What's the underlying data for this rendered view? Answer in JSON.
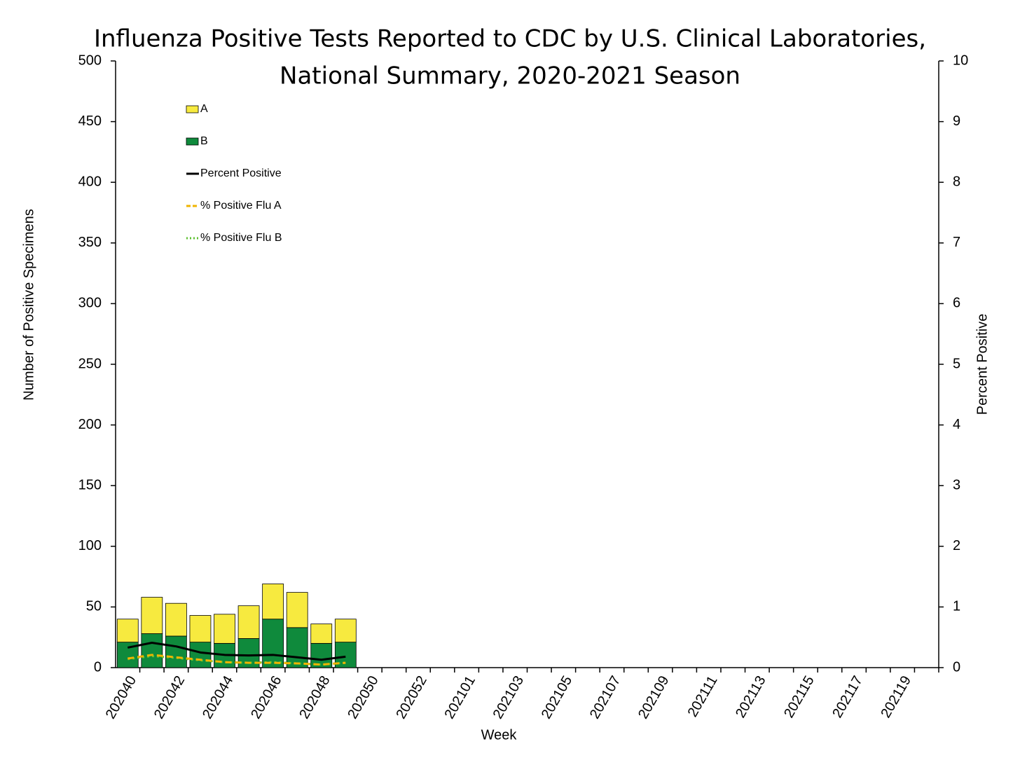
{
  "chart_data": {
    "type": "bar",
    "title": [
      "Influenza Positive Tests Reported to CDC by U.S. Clinical Laboratories,",
      "National Summary, 2020-2021 Season"
    ],
    "x_label": "Week",
    "y_label": "Number of Positive Specimens",
    "y2_label": "Percent Positive",
    "categories": [
      "202040",
      null,
      "202042",
      null,
      "202044",
      null,
      "202046",
      null,
      "202048",
      null,
      "202050",
      null,
      "202052",
      null,
      "202101",
      null,
      "202103",
      null,
      "202105",
      null,
      "202107",
      null,
      "202109",
      null,
      "202111",
      null,
      "202113",
      null,
      "202115",
      null,
      "202117",
      null,
      "202119",
      null
    ],
    "ylim": [
      0,
      500
    ],
    "yticks": [
      0,
      50,
      100,
      150,
      200,
      250,
      300,
      350,
      400,
      450,
      500
    ],
    "y2lim": [
      0,
      10
    ],
    "y2ticks": [
      0,
      1,
      2,
      3,
      4,
      5,
      6,
      7,
      8,
      9,
      10
    ],
    "stacked": true,
    "grid": false,
    "legend": "upper left",
    "series": [
      {
        "name": "A",
        "type": "bar",
        "color": "#f7ea3f",
        "values": [
          19,
          30,
          27,
          22,
          24,
          27,
          29,
          29,
          16,
          19,
          null,
          null,
          null,
          null,
          null,
          null,
          null,
          null,
          null,
          null,
          null,
          null,
          null,
          null,
          null,
          null,
          null,
          null,
          null,
          null,
          null,
          null,
          null,
          null
        ]
      },
      {
        "name": "B",
        "type": "bar",
        "color": "#0f8a3c",
        "values": [
          21,
          28,
          26,
          21,
          20,
          24,
          40,
          33,
          20,
          21,
          null,
          null,
          null,
          null,
          null,
          null,
          null,
          null,
          null,
          null,
          null,
          null,
          null,
          null,
          null,
          null,
          null,
          null,
          null,
          null,
          null,
          null,
          null,
          null
        ]
      },
      {
        "name": "Percent Positive",
        "type": "line",
        "axis": "y2",
        "color": "#000000",
        "style": "solid",
        "values": [
          0.33,
          0.41,
          0.35,
          0.25,
          0.21,
          0.2,
          0.21,
          0.17,
          0.13,
          0.18,
          null,
          null,
          null,
          null,
          null,
          null,
          null,
          null,
          null,
          null,
          null,
          null,
          null,
          null,
          null,
          null,
          null,
          null,
          null,
          null,
          null,
          null,
          null,
          null
        ]
      },
      {
        "name": "% Positive Flu A",
        "type": "line",
        "axis": "y2",
        "color": "#f0b400",
        "style": "dashed",
        "values": [
          0.15,
          0.21,
          0.17,
          0.13,
          0.09,
          0.08,
          0.08,
          0.07,
          0.05,
          0.08,
          null,
          null,
          null,
          null,
          null,
          null,
          null,
          null,
          null,
          null,
          null,
          null,
          null,
          null,
          null,
          null,
          null,
          null,
          null,
          null,
          null,
          null,
          null,
          null
        ]
      },
      {
        "name": "% Positive Flu B",
        "type": "line",
        "axis": "y2",
        "color": "#5cc030",
        "style": "dotted",
        "values": [
          0.14,
          0.19,
          0.16,
          0.12,
          0.09,
          0.08,
          0.09,
          0.07,
          0.05,
          0.08,
          null,
          null,
          null,
          null,
          null,
          null,
          null,
          null,
          null,
          null,
          null,
          null,
          null,
          null,
          null,
          null,
          null,
          null,
          null,
          null,
          null,
          null,
          null,
          null
        ]
      }
    ]
  }
}
